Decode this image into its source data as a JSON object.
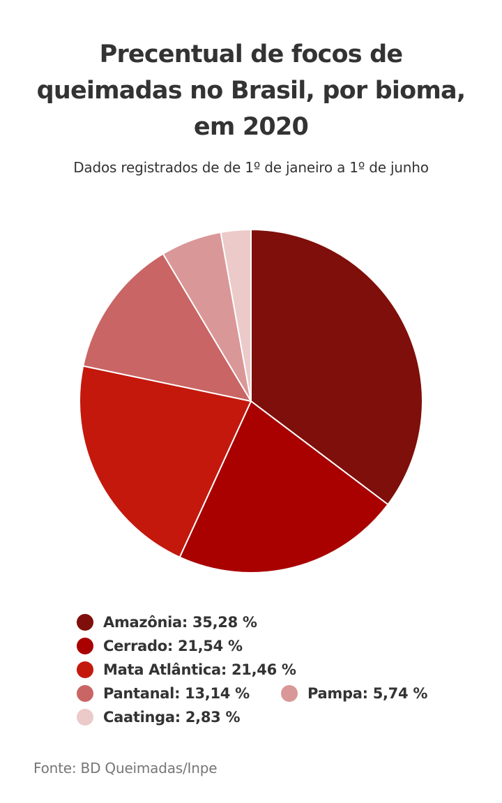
{
  "chart_data": {
    "type": "pie",
    "title_lines": [
      "Precentual de focos de",
      "queimadas no Brasil, por bioma,",
      "em 2020"
    ],
    "subtitle": "Dados registrados de de 1º de janeiro a 1º de junho",
    "unit": "%",
    "slices": [
      {
        "name": "Amazônia",
        "value": 35.28,
        "label": "Amazônia: 35,28 %",
        "color": "#7f0f0a"
      },
      {
        "name": "Cerrado",
        "value": 21.54,
        "label": "Cerrado: 21,54 %",
        "color": "#a90000"
      },
      {
        "name": "Mata Atlântica",
        "value": 21.46,
        "label": "Mata Atlântica: 21,46 %",
        "color": "#c4180d"
      },
      {
        "name": "Pantanal",
        "value": 13.14,
        "label": "Pantanal: 13,14 %",
        "color": "#c96564"
      },
      {
        "name": "Pampa",
        "value": 5.74,
        "label": "Pampa: 5,74 %",
        "color": "#da9797"
      },
      {
        "name": "Caatinga",
        "value": 2.83,
        "label": "Caatinga: 2,83 %",
        "color": "#eccaca"
      }
    ],
    "start_angle": "12 o'clock",
    "direction": "clockwise",
    "legend_position": "bottom"
  },
  "source": "Fonte: BD Queimadas/Inpe"
}
